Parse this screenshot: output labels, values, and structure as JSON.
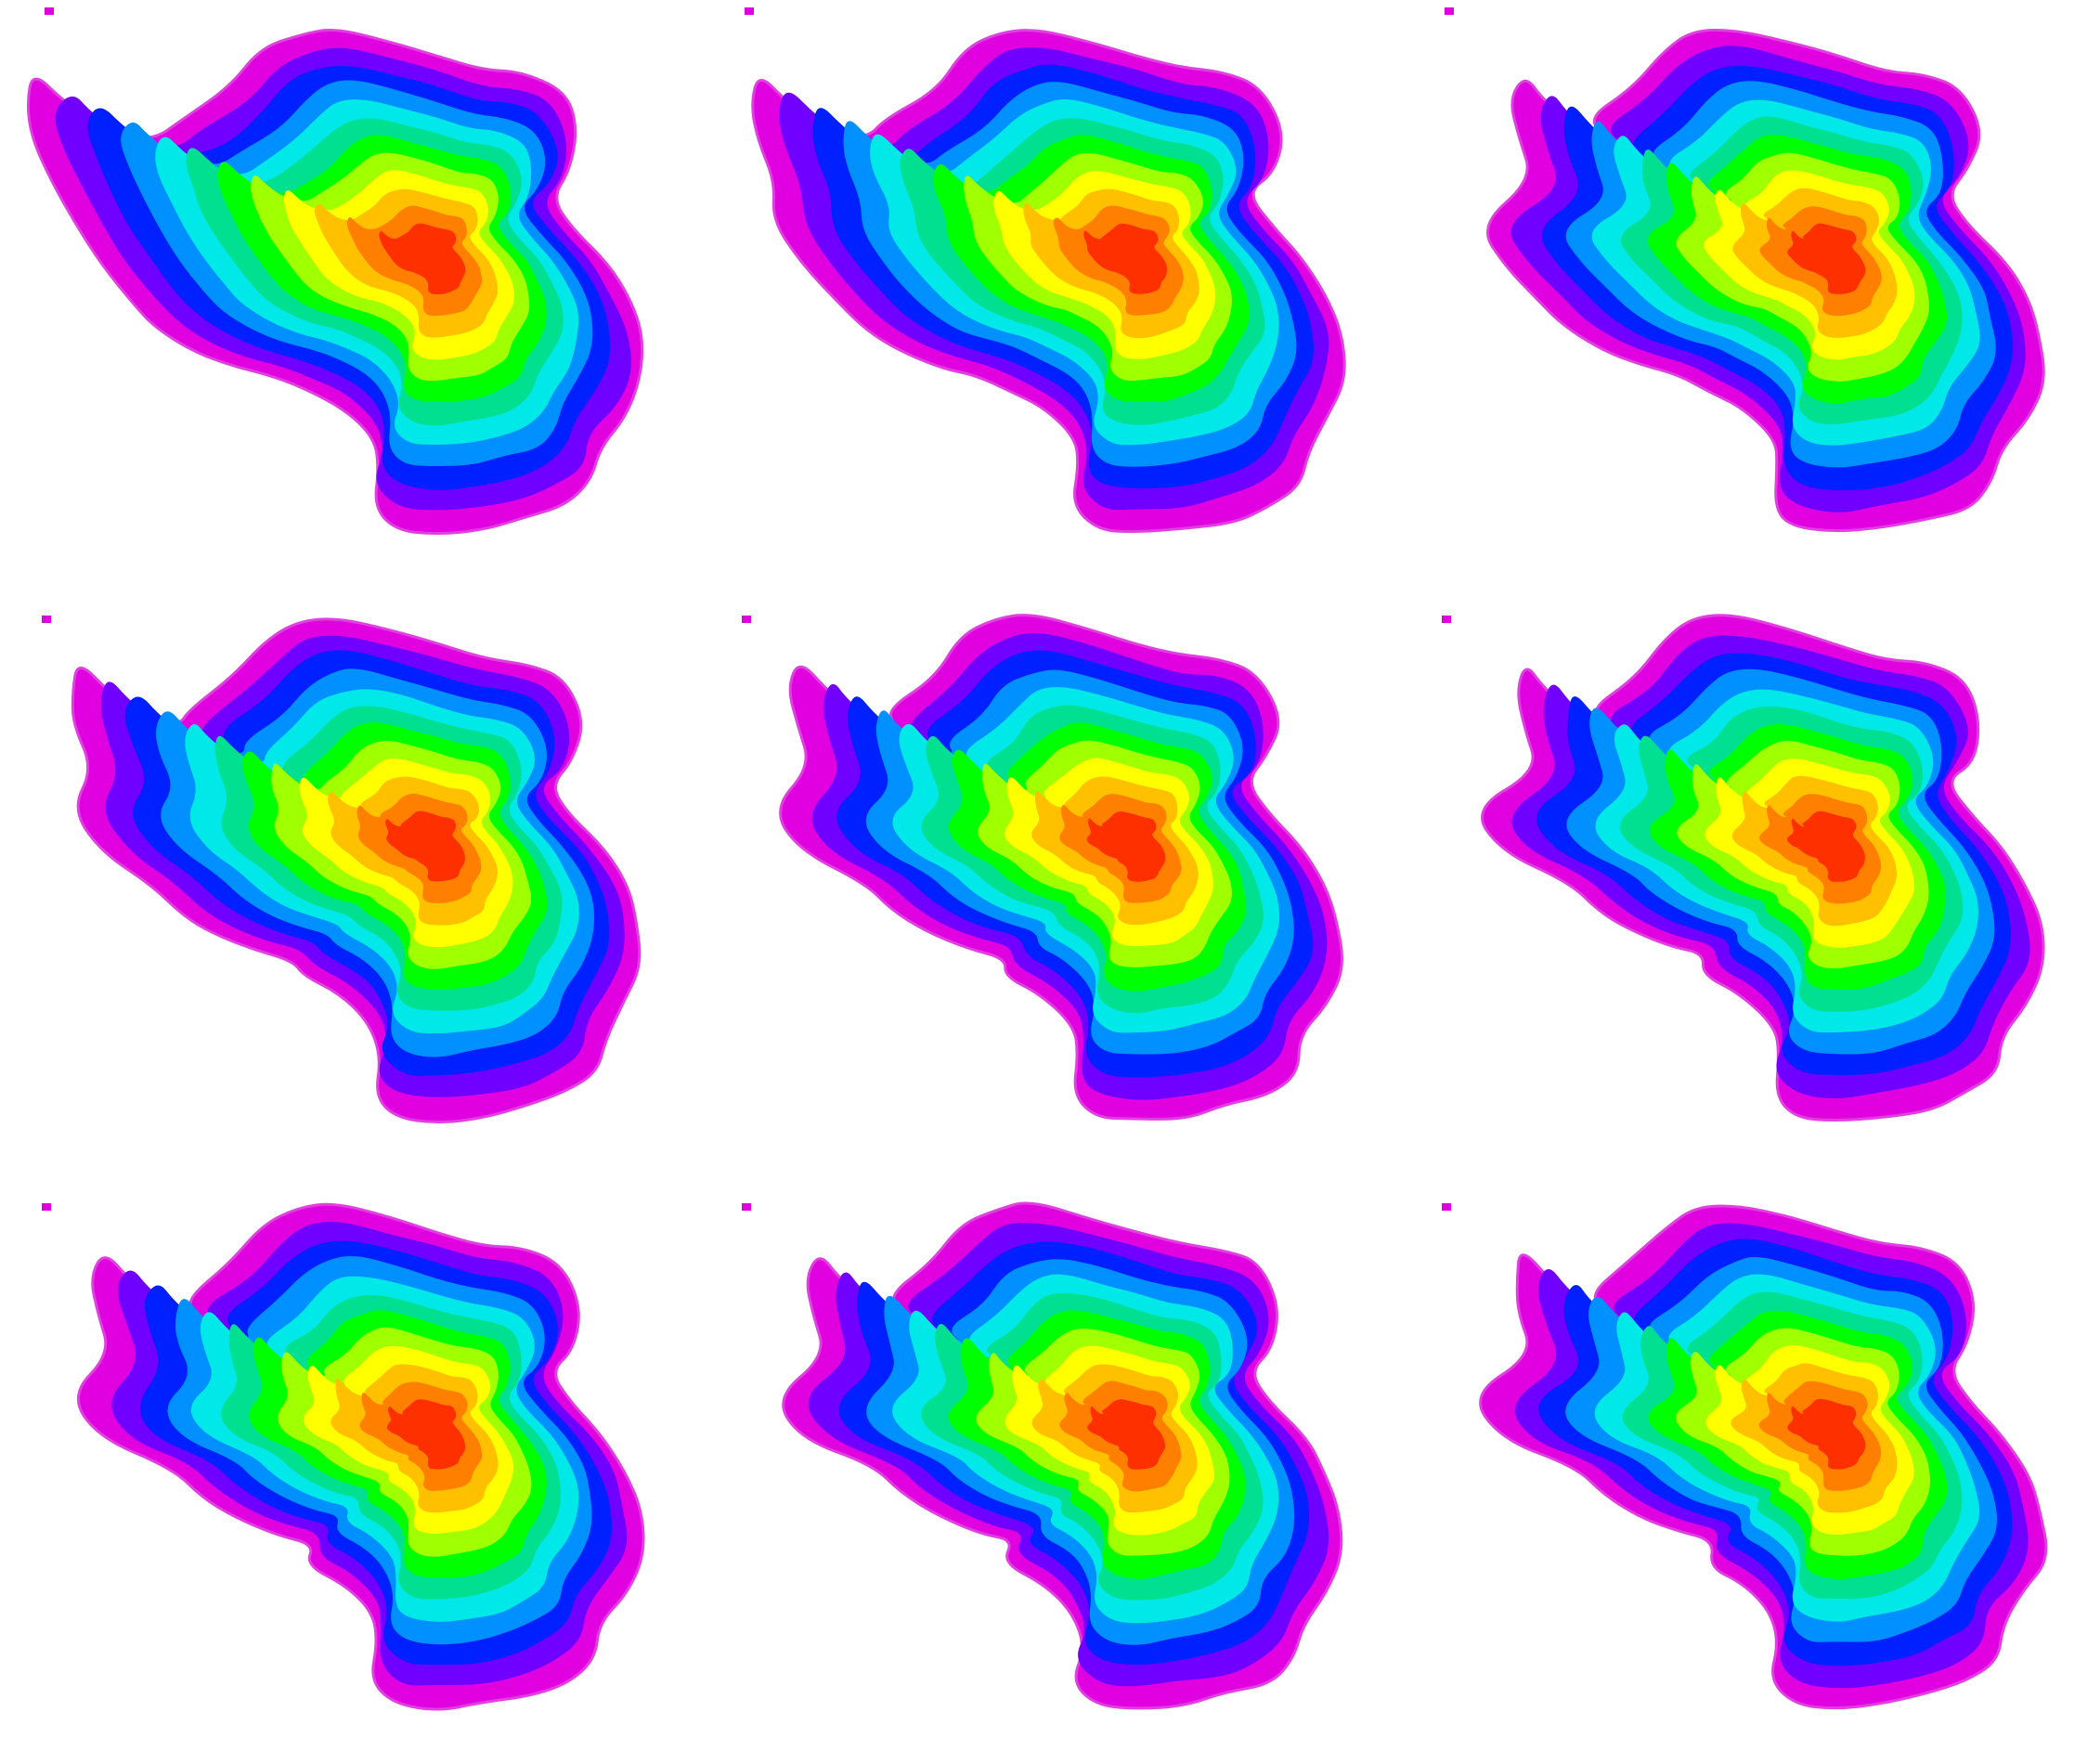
{
  "figure": {
    "rows": 3,
    "cols": 3,
    "colorscale": [
      "#e000e0",
      "#7000ff",
      "#0020ff",
      "#0090ff",
      "#00e8e8",
      "#00e090",
      "#00ff00",
      "#a0ff00",
      "#ffff00",
      "#ffc000",
      "#ff8000",
      "#ff3000"
    ],
    "panels": [
      {
        "id": "r1c1"
      },
      {
        "id": "r1c2"
      },
      {
        "id": "r1c3"
      },
      {
        "id": "r2c1"
      },
      {
        "id": "r2c2"
      },
      {
        "id": "r2c3"
      },
      {
        "id": "r3c1"
      },
      {
        "id": "r3c2"
      },
      {
        "id": "r3c3"
      }
    ]
  }
}
